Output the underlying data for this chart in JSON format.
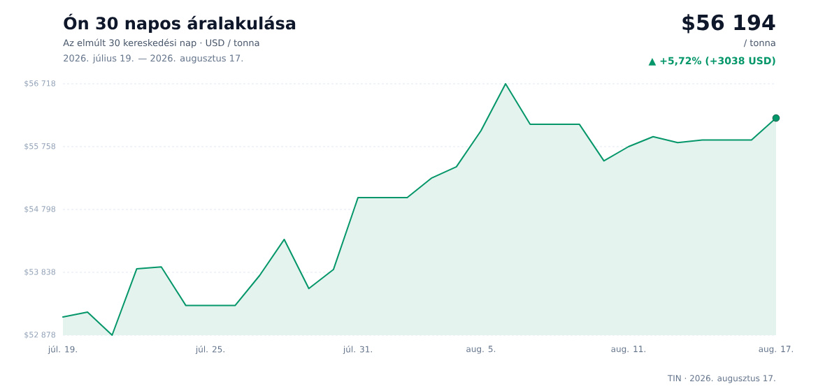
{
  "chart_data": {
    "type": "area",
    "title": "Ón 30 napos áralakulása",
    "subtitle": "Az elmúlt 30 kereskedési nap · USD / tonna",
    "annotations": [
      "2026. július 19. — 2026. augusztus 17.",
      "$56 194",
      "/ tonna",
      "▲ +5,72% (+3038 USD)",
      "TIN · 2026. augusztus 17."
    ],
    "x": [
      "2026-07-19",
      "2026-07-20",
      "2026-07-21",
      "2026-07-22",
      "2026-07-23",
      "2026-07-24",
      "2026-07-25",
      "2026-07-26",
      "2026-07-27",
      "2026-07-28",
      "2026-07-29",
      "2026-07-30",
      "2026-07-31",
      "2026-08-01",
      "2026-08-02",
      "2026-08-03",
      "2026-08-04",
      "2026-08-05",
      "2026-08-06",
      "2026-08-07",
      "2026-08-08",
      "2026-08-09",
      "2026-08-10",
      "2026-08-11",
      "2026-08-12",
      "2026-08-13",
      "2026-08-14",
      "2026-08-15",
      "2026-08-16",
      "2026-08-17"
    ],
    "series": [
      {
        "color": "#059669",
        "values": [
          53156,
          53230,
          52878,
          53890,
          53920,
          53330,
          53330,
          53330,
          53790,
          54340,
          53590,
          53880,
          54980,
          54980,
          54980,
          55280,
          55450,
          56000,
          56718,
          56100,
          56100,
          56100,
          55540,
          55758,
          55910,
          55820,
          55860,
          55860,
          55860,
          56194
        ]
      },
      {
        "type": "scatter",
        "color": "#059669",
        "marker": "circle",
        "x": [
          "2026-08-17"
        ],
        "values": [
          56194
        ]
      }
    ],
    "xlim": [
      "2026-07-19",
      "2026-08-17"
    ],
    "xticks": [
      {
        "value": "2026-07-19",
        "label": "júl. 19."
      },
      {
        "value": "2026-07-25",
        "label": "júl. 25."
      },
      {
        "value": "2026-07-31",
        "label": "júl. 31."
      },
      {
        "value": "2026-08-05",
        "label": "aug. 5."
      },
      {
        "value": "2026-08-11",
        "label": "aug. 11."
      },
      {
        "value": "2026-08-17",
        "label": "aug. 17."
      }
    ],
    "ylim": [
      52878,
      56718
    ],
    "yticks": [
      {
        "value": 52878,
        "label": "$52 878"
      },
      {
        "value": 53838,
        "label": "$53 838"
      },
      {
        "value": 54798,
        "label": "$54 798"
      },
      {
        "value": 55758,
        "label": "$55 758"
      },
      {
        "value": 56718,
        "label": "$56 718"
      }
    ],
    "grid": "y"
  }
}
